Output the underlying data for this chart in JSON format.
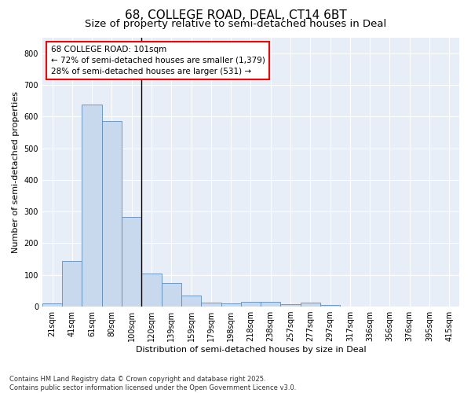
{
  "title": "68, COLLEGE ROAD, DEAL, CT14 6BT",
  "subtitle": "Size of property relative to semi-detached houses in Deal",
  "xlabel": "Distribution of semi-detached houses by size in Deal",
  "ylabel": "Number of semi-detached properties",
  "categories": [
    "21sqm",
    "41sqm",
    "61sqm",
    "80sqm",
    "100sqm",
    "120sqm",
    "139sqm",
    "159sqm",
    "179sqm",
    "198sqm",
    "218sqm",
    "238sqm",
    "257sqm",
    "277sqm",
    "297sqm",
    "317sqm",
    "336sqm",
    "356sqm",
    "376sqm",
    "395sqm",
    "415sqm"
  ],
  "values": [
    10,
    143,
    638,
    585,
    283,
    105,
    75,
    35,
    13,
    10,
    15,
    15,
    8,
    12,
    5,
    0,
    0,
    0,
    0,
    0,
    0
  ],
  "bar_color": "#c9d9ed",
  "bar_edge_color": "#5b8fbe",
  "background_color": "#e8eef7",
  "annotation_text": "68 COLLEGE ROAD: 101sqm\n← 72% of semi-detached houses are smaller (1,379)\n28% of semi-detached houses are larger (531) →",
  "ylim": [
    0,
    850
  ],
  "yticks": [
    0,
    100,
    200,
    300,
    400,
    500,
    600,
    700,
    800
  ],
  "footer": "Contains HM Land Registry data © Crown copyright and database right 2025.\nContains public sector information licensed under the Open Government Licence v3.0.",
  "title_fontsize": 11,
  "subtitle_fontsize": 9.5,
  "label_fontsize": 8,
  "tick_fontsize": 7,
  "annotation_fontsize": 7.5,
  "footer_fontsize": 6
}
